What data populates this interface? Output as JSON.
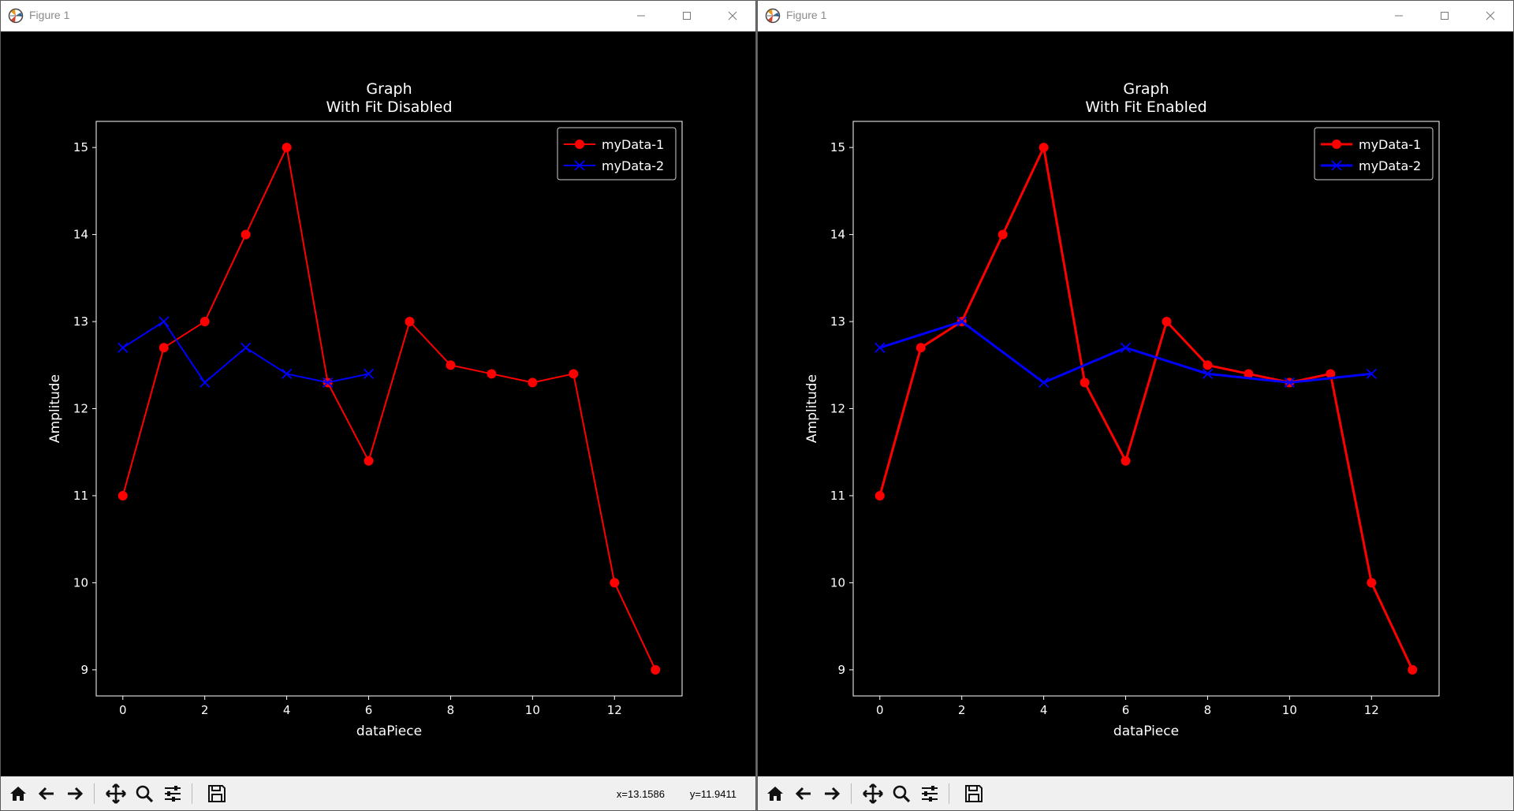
{
  "windows": [
    {
      "title": "Figure 1",
      "coord_readout": {
        "x": "x=13.1586",
        "y": "y=11.9411"
      }
    },
    {
      "title": "Figure 1",
      "coord_readout": {
        "x": "",
        "y": ""
      }
    }
  ],
  "toolbar": {
    "buttons": [
      "home-icon",
      "back-arrow-icon",
      "forward-arrow-icon",
      "pan-icon",
      "zoom-icon",
      "configure-subplots-icon",
      "save-icon"
    ]
  },
  "chart_data": [
    {
      "type": "line",
      "title": "Graph",
      "subtitle": "With Fit Disabled",
      "xlabel": "dataPiece",
      "ylabel": "Amplitude",
      "xlim": [
        -0.65,
        13.65
      ],
      "ylim": [
        8.7,
        15.3
      ],
      "xticks": [
        0,
        2,
        4,
        6,
        8,
        10,
        12
      ],
      "yticks": [
        9,
        10,
        11,
        12,
        13,
        14,
        15
      ],
      "background": "#000000",
      "legend_position": "top-right",
      "series": [
        {
          "name": "myData-1",
          "color": "#ff0000",
          "marker": "circle",
          "linewidth": 2,
          "x": [
            0,
            1,
            2,
            3,
            4,
            5,
            6,
            7,
            8,
            9,
            10,
            11,
            12,
            13
          ],
          "y": [
            11,
            12.7,
            13,
            14,
            15,
            12.3,
            11.4,
            13,
            12.5,
            12.4,
            12.3,
            12.4,
            10,
            9
          ]
        },
        {
          "name": "myData-2",
          "color": "#0000ff",
          "marker": "x",
          "linewidth": 2,
          "x": [
            0,
            1,
            2,
            3,
            4,
            5,
            6
          ],
          "y": [
            12.7,
            13,
            12.3,
            12.7,
            12.4,
            12.3,
            12.4
          ]
        }
      ]
    },
    {
      "type": "line",
      "title": "Graph",
      "subtitle": "With Fit Enabled",
      "xlabel": "dataPiece",
      "ylabel": "Amplitude",
      "xlim": [
        -0.65,
        13.65
      ],
      "ylim": [
        8.7,
        15.3
      ],
      "xticks": [
        0,
        2,
        4,
        6,
        8,
        10,
        12
      ],
      "yticks": [
        9,
        10,
        11,
        12,
        13,
        14,
        15
      ],
      "background": "#000000",
      "legend_position": "top-right",
      "series": [
        {
          "name": "myData-1",
          "color": "#ff0000",
          "marker": "circle",
          "linewidth": 3,
          "x": [
            0,
            1,
            2,
            3,
            4,
            5,
            6,
            7,
            8,
            9,
            10,
            11,
            12,
            13
          ],
          "y": [
            11,
            12.7,
            13,
            14,
            15,
            12.3,
            11.4,
            13,
            12.5,
            12.4,
            12.3,
            12.4,
            10,
            9
          ]
        },
        {
          "name": "myData-2",
          "color": "#0000ff",
          "marker": "x",
          "linewidth": 3,
          "x": [
            0,
            2,
            4,
            6,
            8,
            10,
            12
          ],
          "y": [
            12.7,
            13,
            12.3,
            12.7,
            12.4,
            12.3,
            12.4
          ]
        }
      ]
    }
  ]
}
